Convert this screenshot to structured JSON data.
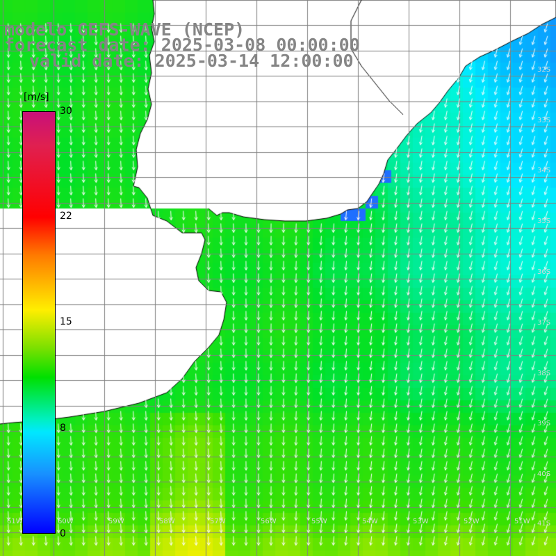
{
  "title": {
    "line1": "modelo GEFS-WAVE (NCEP)",
    "line2": "forecast date: 2025-03-08 00:00:00",
    "line3": "valid date: 2025-03-14 12:00:00"
  },
  "colorbar": {
    "unit": "[m/s]",
    "ticks": [
      "30",
      "22",
      "15",
      "8",
      "0"
    ],
    "colors": [
      "#c8107a",
      "#ff0000",
      "#ff7a00",
      "#ffee00",
      "#00e000",
      "#00e8ff",
      "#1890ff",
      "#0000ff"
    ]
  },
  "map": {
    "land_color": "#ffffff",
    "coast_color": "#000000",
    "grid_color": "#808080",
    "arrow_color": "#ffffff",
    "field": "wind speed with direction arrows"
  },
  "lat_labels": [
    "32S",
    "33S",
    "34S",
    "35S",
    "36S",
    "37S",
    "38S",
    "39S",
    "40S",
    "41S"
  ],
  "lon_labels": [
    "61W",
    "60W",
    "59W",
    "58W",
    "57W",
    "56W",
    "55W",
    "54W",
    "53W",
    "52W",
    "51W"
  ]
}
